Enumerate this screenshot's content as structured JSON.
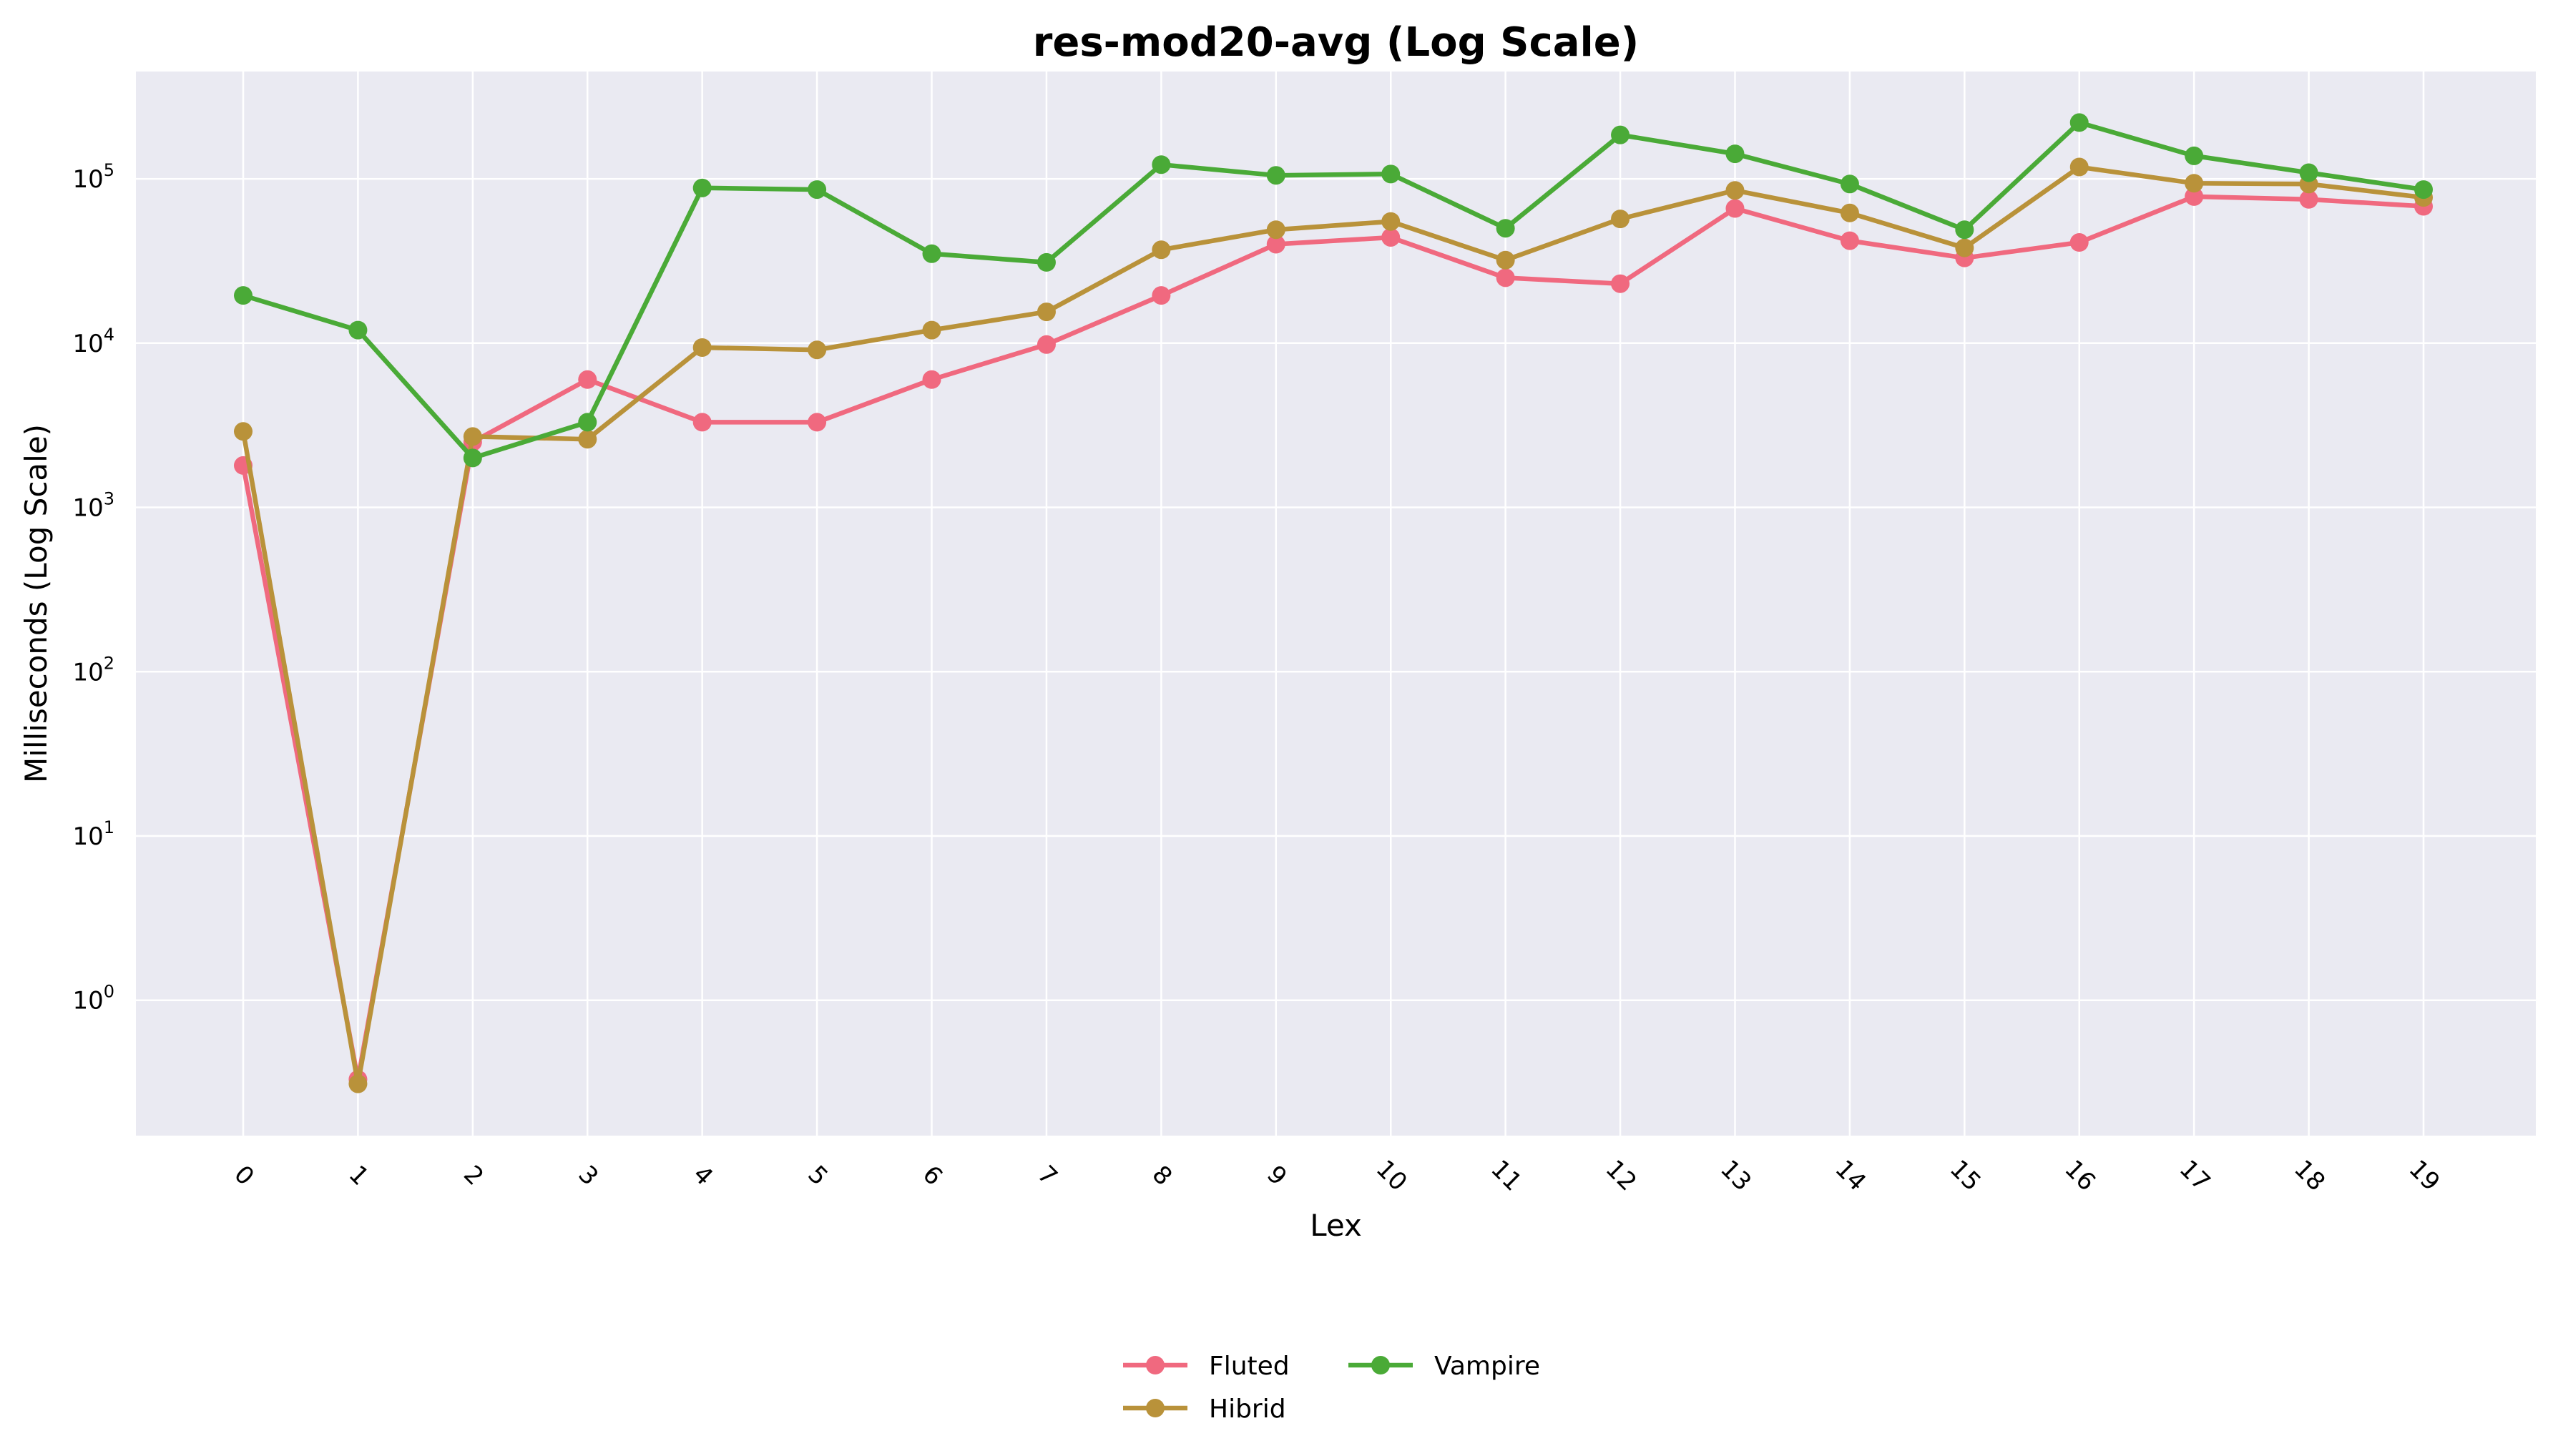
{
  "chart_data": {
    "type": "line",
    "title": "res-mod20-avg (Log Scale)",
    "xlabel": "Lex",
    "ylabel": "Milliseconds (Log Scale)",
    "yscale": "log",
    "ylim": [
      0.15,
      450000
    ],
    "grid": true,
    "legend_position": "bottom-center",
    "categories": [
      "0",
      "1",
      "2",
      "3",
      "4",
      "5",
      "6",
      "7",
      "8",
      "9",
      "10",
      "11",
      "12",
      "13",
      "14",
      "15",
      "16",
      "17",
      "18",
      "19"
    ],
    "y_ticks": [
      {
        "base": "10",
        "exp": "0",
        "value": 1
      },
      {
        "base": "10",
        "exp": "1",
        "value": 10
      },
      {
        "base": "10",
        "exp": "2",
        "value": 100
      },
      {
        "base": "10",
        "exp": "3",
        "value": 1000
      },
      {
        "base": "10",
        "exp": "4",
        "value": 10000
      },
      {
        "base": "10",
        "exp": "5",
        "value": 100000
      }
    ],
    "series": [
      {
        "name": "Fluted",
        "color": "#f0697f",
        "values": [
          1800,
          0.33,
          2500,
          6000,
          3300,
          3300,
          6000,
          9800,
          19500,
          40000,
          44000,
          25000,
          23000,
          66000,
          42000,
          33000,
          41000,
          78000,
          75000,
          68000
        ]
      },
      {
        "name": "Hibrid",
        "color": "#b9923a",
        "values": [
          2900,
          0.31,
          2700,
          2600,
          9400,
          9100,
          12000,
          15500,
          37000,
          49000,
          55000,
          32000,
          57000,
          85000,
          62000,
          38000,
          118000,
          94000,
          93000,
          77000
        ]
      },
      {
        "name": "Vampire",
        "color": "#4aaa37",
        "values": [
          19500,
          12000,
          2000,
          3300,
          88000,
          86000,
          35000,
          31000,
          122000,
          105000,
          107000,
          50000,
          185000,
          142000,
          93000,
          49000,
          220000,
          138000,
          109000,
          86000
        ]
      }
    ]
  }
}
